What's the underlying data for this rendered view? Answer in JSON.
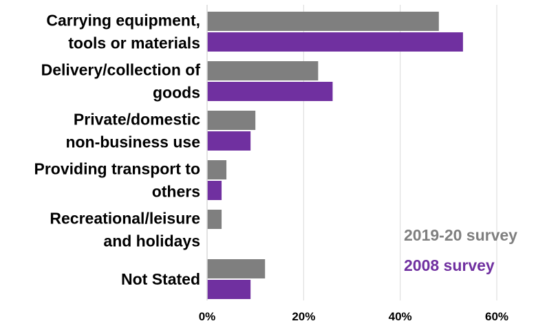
{
  "chart_data": {
    "type": "bar",
    "orientation": "horizontal",
    "categories": [
      [
        "Carrying equipment,",
        "tools or materials"
      ],
      [
        "Delivery/collection of",
        "goods"
      ],
      [
        "Private/domestic",
        "non-business use"
      ],
      [
        "Providing transport to",
        "others"
      ],
      [
        "Recreational/leisure",
        "and holidays"
      ],
      [
        "Not Stated"
      ]
    ],
    "series": [
      {
        "name": "2019-20 survey",
        "color": "#7f7f7f",
        "values": [
          48,
          23,
          10,
          4,
          3,
          12
        ]
      },
      {
        "name": "2008 survey",
        "color": "#7030a0",
        "values": [
          53,
          26,
          9,
          3,
          null,
          9
        ]
      }
    ],
    "x_ticks": [
      0,
      20,
      40,
      60
    ],
    "x_tick_labels": [
      "0%",
      "20%",
      "40%",
      "60%"
    ],
    "xlim": [
      0,
      60
    ],
    "grid": "vertical",
    "legend_placement": "bottom-right",
    "title": "",
    "xlabel": "",
    "ylabel": ""
  }
}
